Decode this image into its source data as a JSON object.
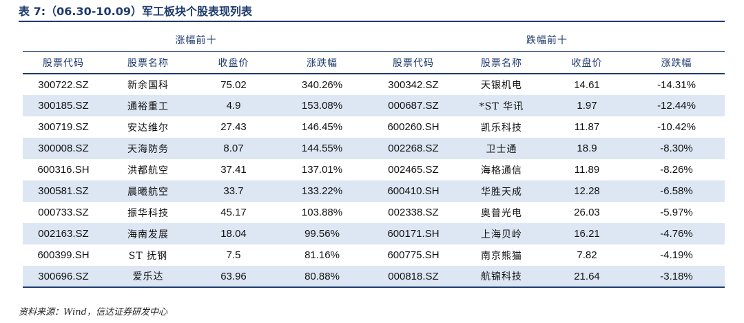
{
  "title": "表 7:（06.30-10.09）军工板块个股表现列表",
  "groups": {
    "gainers": "涨幅前十",
    "losers": "跌幅前十"
  },
  "columns": [
    "股票代码",
    "股票名称",
    "收盘价",
    "涨跌幅",
    "股票代码",
    "股票名称",
    "收盘价",
    "涨跌幅"
  ],
  "rows": [
    [
      "300722.SZ",
      "新余国科",
      "75.02",
      "340.26%",
      "300342.SZ",
      "天银机电",
      "14.61",
      "-14.31%"
    ],
    [
      "300185.SZ",
      "通裕重工",
      "4.9",
      "153.08%",
      "000687.SZ",
      "*ST 华讯",
      "1.97",
      "-12.44%"
    ],
    [
      "300719.SZ",
      "安达维尔",
      "27.43",
      "146.45%",
      "600260.SH",
      "凯乐科技",
      "11.87",
      "-10.42%"
    ],
    [
      "300008.SZ",
      "天海防务",
      "8.07",
      "144.55%",
      "002268.SZ",
      "卫士通",
      "18.9",
      "-8.30%"
    ],
    [
      "600316.SH",
      "洪都航空",
      "37.41",
      "137.01%",
      "002465.SZ",
      "海格通信",
      "11.89",
      "-8.26%"
    ],
    [
      "300581.SZ",
      "晨曦航空",
      "33.7",
      "133.22%",
      "600410.SH",
      "华胜天成",
      "12.28",
      "-6.58%"
    ],
    [
      "000733.SZ",
      "振华科技",
      "45.17",
      "103.88%",
      "002338.SZ",
      "奥普光电",
      "26.03",
      "-5.97%"
    ],
    [
      "002163.SZ",
      "海南发展",
      "18.04",
      "99.56%",
      "600171.SH",
      "上海贝岭",
      "16.21",
      "-4.76%"
    ],
    [
      "600399.SH",
      "ST 抚钢",
      "7.5",
      "81.16%",
      "600775.SH",
      "南京熊猫",
      "7.82",
      "-4.19%"
    ],
    [
      "300696.SZ",
      "爱乐达",
      "63.96",
      "80.88%",
      "000818.SZ",
      "航锦科技",
      "21.64",
      "-3.18%"
    ]
  ],
  "source": "资料来源：Wind，信达证券研发中心"
}
